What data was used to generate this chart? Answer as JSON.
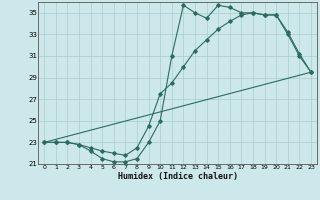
{
  "xlabel": "Humidex (Indice chaleur)",
  "background_color": "#cce8ea",
  "grid_color": "#aacccc",
  "line_color": "#2d6b60",
  "xmin": -0.5,
  "xmax": 23.5,
  "ymin": 21,
  "ymax": 36,
  "yticks": [
    21,
    23,
    25,
    27,
    29,
    31,
    33,
    35
  ],
  "xticks": [
    0,
    1,
    2,
    3,
    4,
    5,
    6,
    7,
    8,
    9,
    10,
    11,
    12,
    13,
    14,
    15,
    16,
    17,
    18,
    19,
    20,
    21,
    22,
    23
  ],
  "line1_x": [
    0,
    1,
    2,
    3,
    4,
    5,
    6,
    7,
    8,
    9,
    10,
    11,
    12,
    13,
    14,
    15,
    16,
    17,
    18,
    19,
    20,
    21,
    22,
    23
  ],
  "line1_y": [
    23,
    23,
    23,
    22.8,
    22.2,
    21.5,
    21.2,
    21.2,
    21.5,
    23,
    25,
    31,
    35.7,
    35,
    34.5,
    35.7,
    35.5,
    35,
    35,
    34.8,
    34.8,
    33,
    31,
    29.5
  ],
  "line2_x": [
    0,
    1,
    2,
    3,
    4,
    5,
    6,
    7,
    8,
    9,
    10,
    11,
    12,
    13,
    14,
    15,
    16,
    17,
    18,
    19,
    20,
    21,
    22,
    23
  ],
  "line2_y": [
    23,
    23,
    23,
    22.8,
    22.5,
    22.2,
    22.0,
    21.8,
    22.5,
    24.5,
    27.5,
    28.5,
    30,
    31.5,
    32.5,
    33.5,
    34.2,
    34.8,
    35.0,
    34.8,
    34.8,
    33.2,
    31.2,
    29.5
  ],
  "line3_x": [
    0,
    23
  ],
  "line3_y": [
    23,
    29.5
  ]
}
